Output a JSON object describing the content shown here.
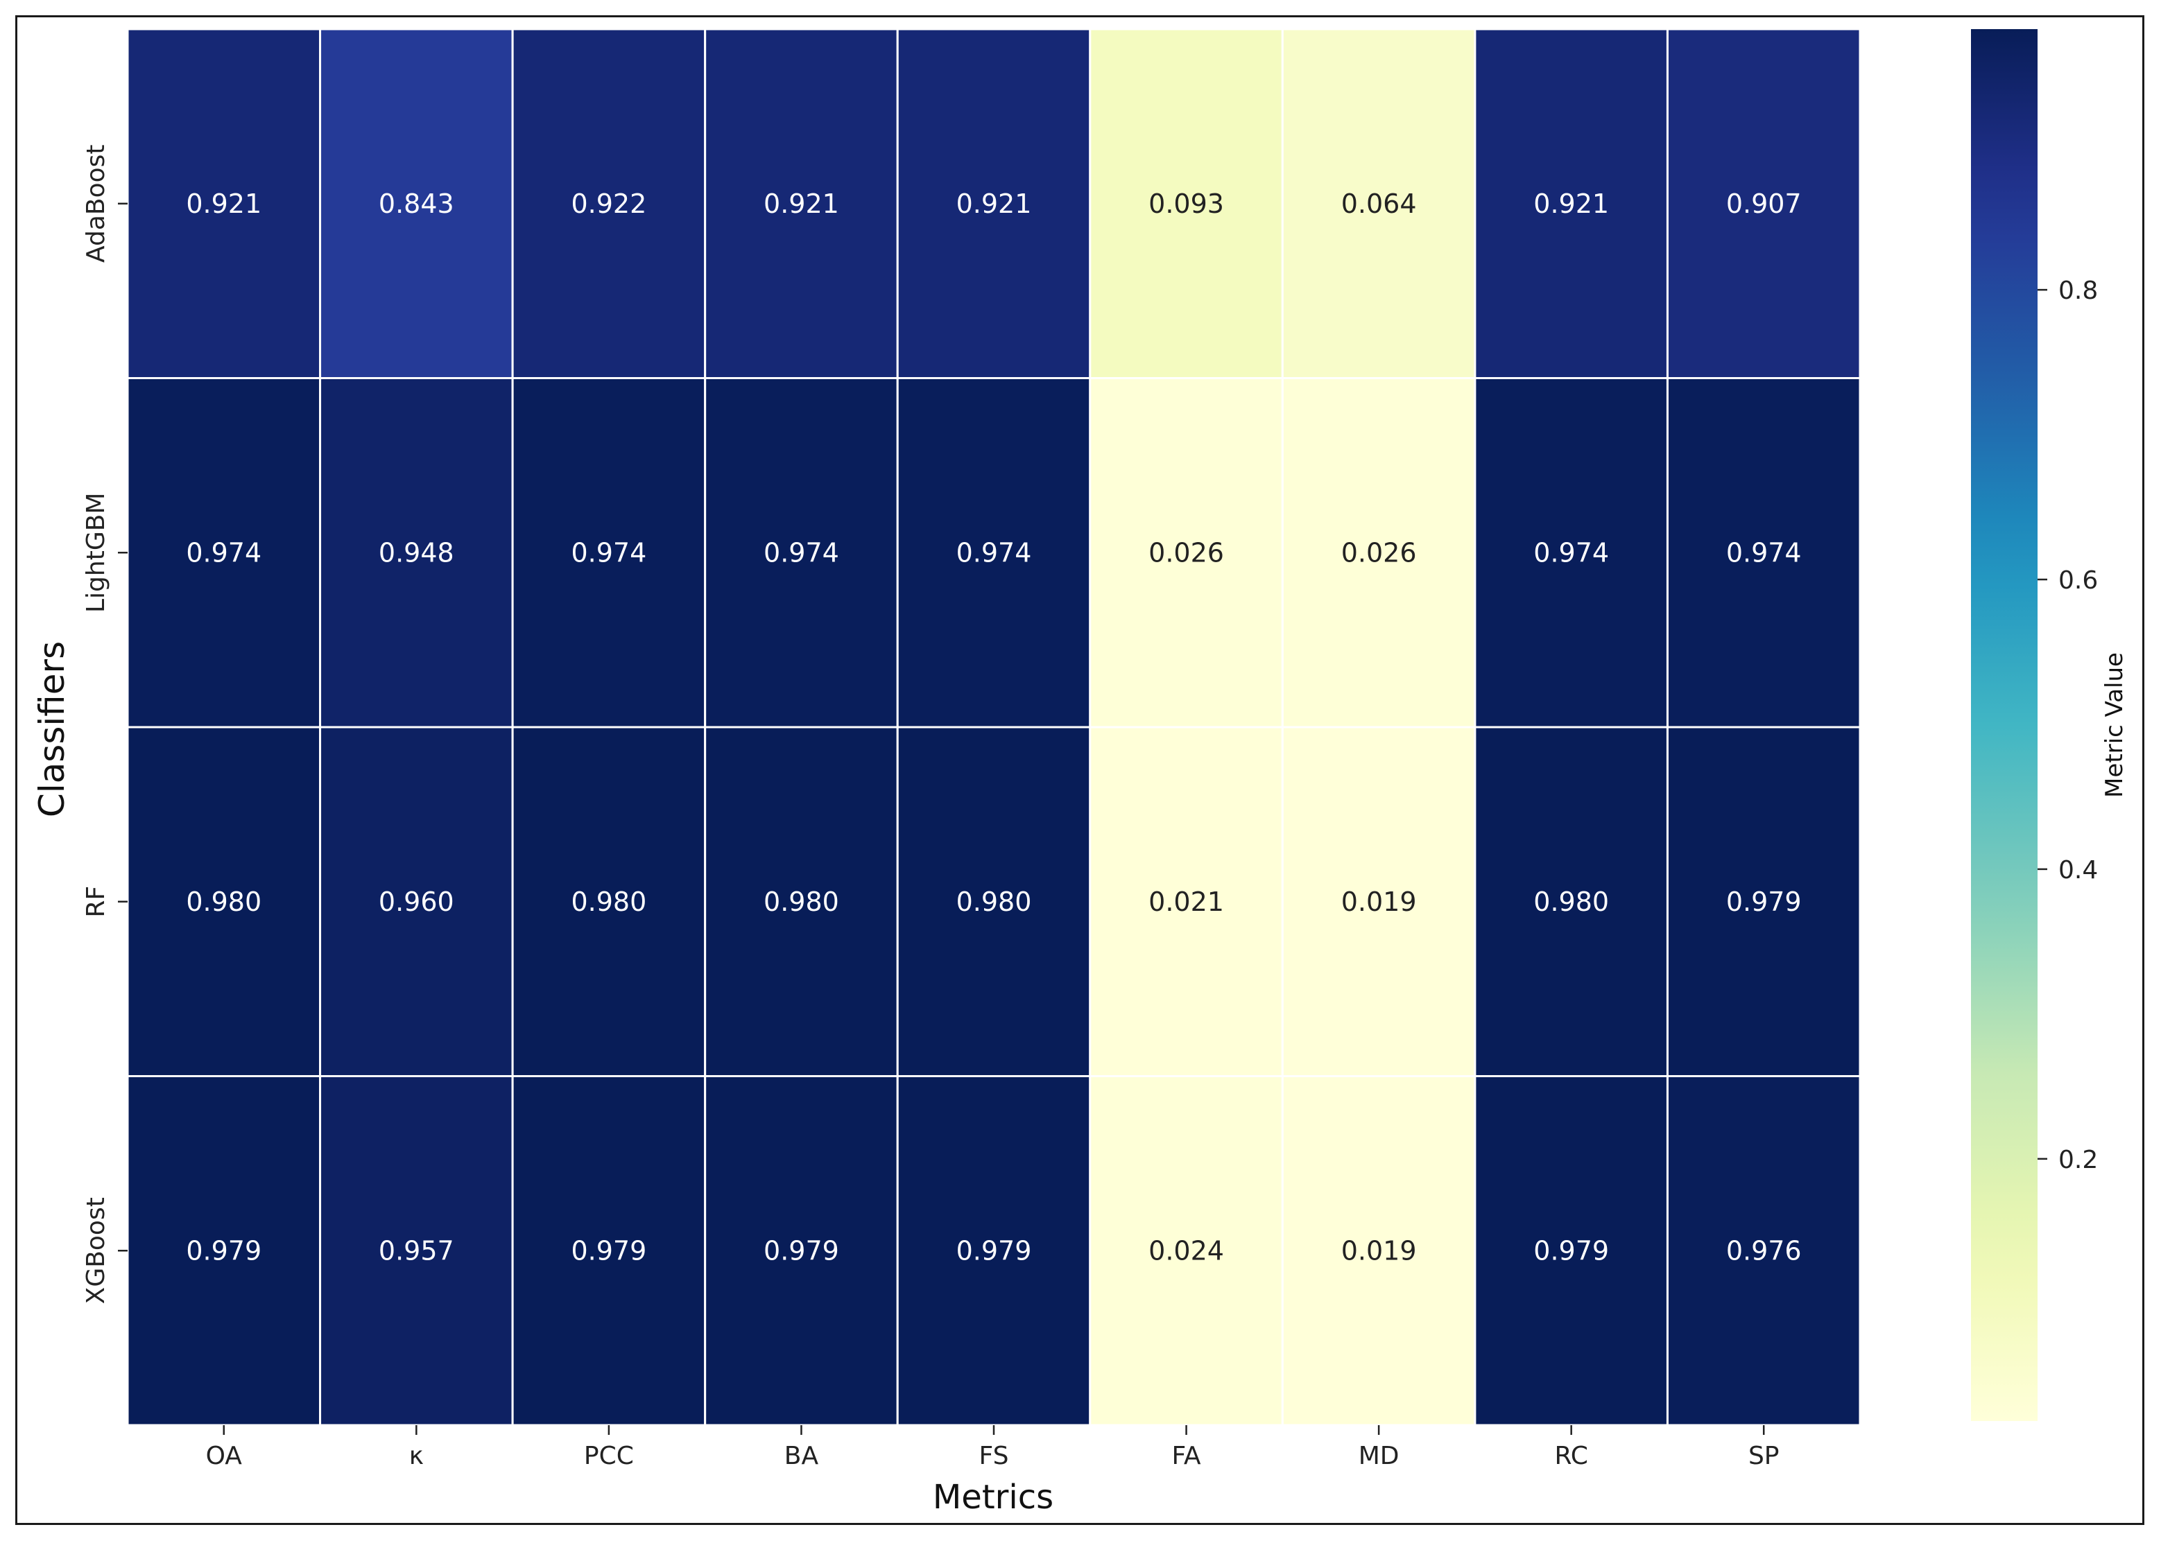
{
  "chart_data": {
    "type": "heatmap",
    "xlabel": "Metrics",
    "ylabel": "Classifiers",
    "colorbar_label": "Metric Value",
    "colormap": "YlGnBu",
    "colorbar_ticks": [
      "0.2",
      "0.4",
      "0.6",
      "0.8"
    ],
    "colorbar_range": [
      0.019,
      0.98
    ],
    "categories": [
      "OA",
      "κ",
      "PCC",
      "BA",
      "FS",
      "FA",
      "MD",
      "RC",
      "SP"
    ],
    "rows": [
      "AdaBoost",
      "LightGBM",
      "RF",
      "XGBoost"
    ],
    "values": [
      [
        0.921,
        0.843,
        0.922,
        0.921,
        0.921,
        0.093,
        0.064,
        0.921,
        0.907
      ],
      [
        0.974,
        0.948,
        0.974,
        0.974,
        0.974,
        0.026,
        0.026,
        0.974,
        0.974
      ],
      [
        0.98,
        0.96,
        0.98,
        0.98,
        0.98,
        0.021,
        0.019,
        0.98,
        0.979
      ],
      [
        0.979,
        0.957,
        0.979,
        0.979,
        0.979,
        0.024,
        0.019,
        0.979,
        0.976
      ]
    ],
    "value_labels": [
      [
        "0.921",
        "0.843",
        "0.922",
        "0.921",
        "0.921",
        "0.093",
        "0.064",
        "0.921",
        "0.907"
      ],
      [
        "0.974",
        "0.948",
        "0.974",
        "0.974",
        "0.974",
        "0.026",
        "0.026",
        "0.974",
        "0.974"
      ],
      [
        "0.980",
        "0.960",
        "0.980",
        "0.980",
        "0.980",
        "0.021",
        "0.019",
        "0.980",
        "0.979"
      ],
      [
        "0.979",
        "0.957",
        "0.979",
        "0.979",
        "0.979",
        "0.024",
        "0.019",
        "0.979",
        "0.976"
      ]
    ]
  }
}
